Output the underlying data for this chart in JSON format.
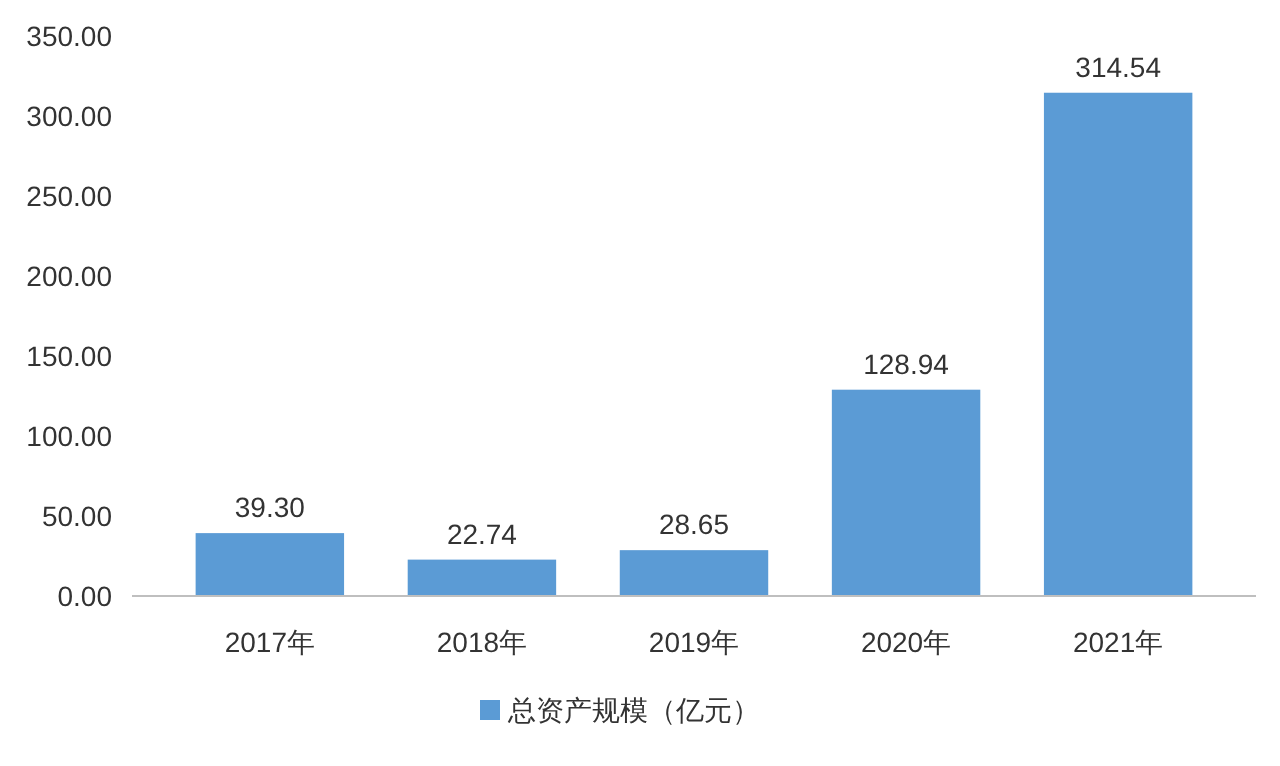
{
  "chart_data": {
    "type": "bar",
    "categories": [
      "2017年",
      "2018年",
      "2019年",
      "2020年",
      "2021年"
    ],
    "series": [
      {
        "name": "总资产规模（亿元）",
        "color": "#5b9bd5",
        "values": [
          39.3,
          22.74,
          28.65,
          128.94,
          314.54
        ],
        "value_labels": [
          "39.30",
          "22.74",
          "28.65",
          "128.94",
          "314.54"
        ]
      }
    ],
    "ylim": [
      0,
      350
    ],
    "yticks": [
      {
        "value": 0,
        "label": "0.00"
      },
      {
        "value": 50,
        "label": "50.00"
      },
      {
        "value": 100,
        "label": "100.00"
      },
      {
        "value": 150,
        "label": "150.00"
      },
      {
        "value": 200,
        "label": "200.00"
      },
      {
        "value": 250,
        "label": "250.00"
      },
      {
        "value": 300,
        "label": "300.00"
      },
      {
        "value": 350,
        "label": "350.00"
      }
    ],
    "grid": false,
    "legend": "bottom"
  }
}
